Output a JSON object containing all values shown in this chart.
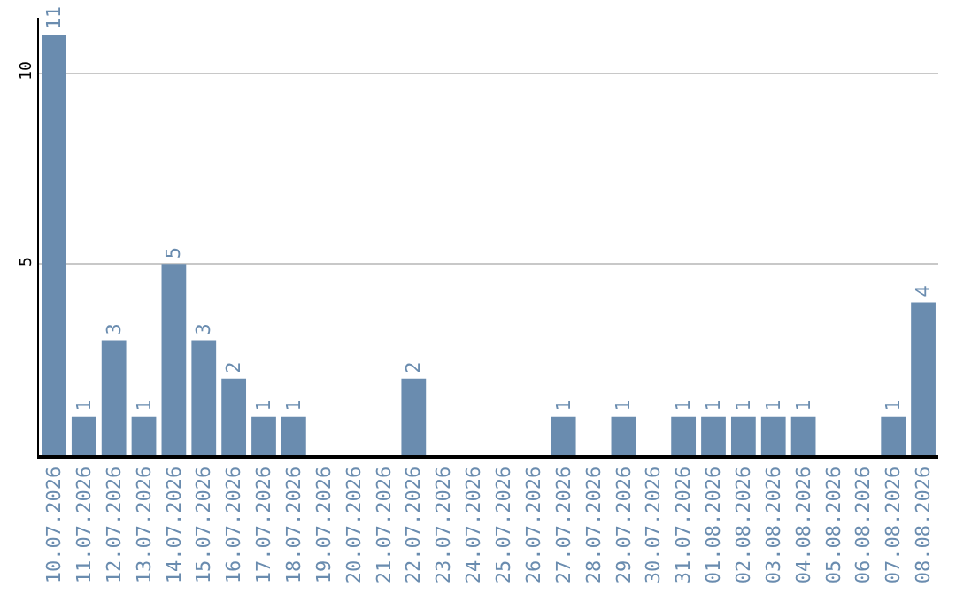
{
  "chart_data": {
    "type": "bar",
    "categories": [
      "10.07.2026",
      "11.07.2026",
      "12.07.2026",
      "13.07.2026",
      "14.07.2026",
      "15.07.2026",
      "16.07.2026",
      "17.07.2026",
      "18.07.2026",
      "19.07.2026",
      "20.07.2026",
      "21.07.2026",
      "22.07.2026",
      "23.07.2026",
      "24.07.2026",
      "25.07.2026",
      "26.07.2026",
      "27.07.2026",
      "28.07.2026",
      "29.07.2026",
      "30.07.2026",
      "31.07.2026",
      "01.08.2026",
      "02.08.2026",
      "03.08.2026",
      "04.08.2026",
      "05.08.2026",
      "06.08.2026",
      "07.08.2026",
      "08.08.2026"
    ],
    "values": [
      11,
      1,
      3,
      1,
      5,
      3,
      2,
      1,
      1,
      0,
      0,
      0,
      2,
      0,
      0,
      0,
      0,
      1,
      0,
      1,
      0,
      1,
      1,
      1,
      1,
      1,
      0,
      0,
      1,
      4
    ],
    "value_labels": [
      "11",
      "1",
      "3",
      "1",
      "5",
      "3",
      "2",
      "1",
      "1",
      null,
      null,
      null,
      "2",
      null,
      null,
      null,
      null,
      "1",
      null,
      "1",
      null,
      "1",
      "1",
      "1",
      "1",
      "1",
      null,
      null,
      "1",
      "4"
    ],
    "color": "#6a8caf",
    "ylim": [
      0,
      11.45
    ],
    "yticks": [
      5,
      10
    ],
    "grid": "y",
    "legend": false
  }
}
